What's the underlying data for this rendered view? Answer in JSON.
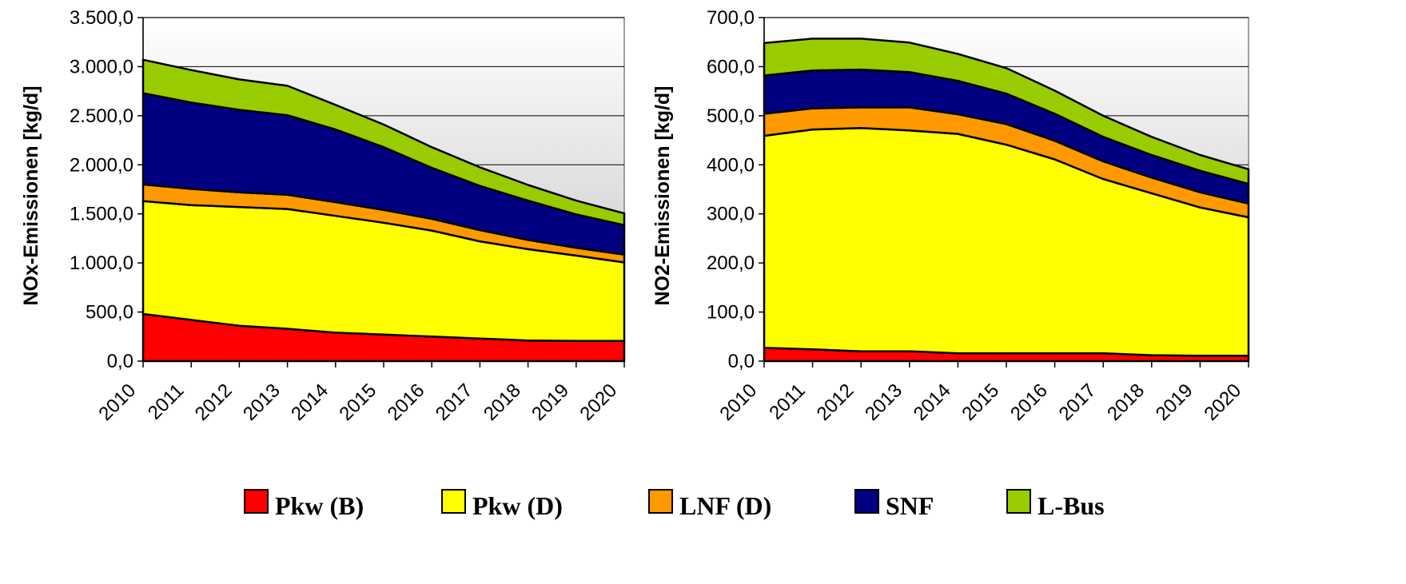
{
  "legend": [
    {
      "label": "Pkw (B)",
      "color": "#ff0000"
    },
    {
      "label": "Pkw (D)",
      "color": "#ffff00"
    },
    {
      "label": "LNF (D)",
      "color": "#ff9900"
    },
    {
      "label": "SNF",
      "color": "#000080"
    },
    {
      "label": "L-Bus",
      "color": "#99cc00"
    }
  ],
  "chart_data": [
    {
      "type": "area",
      "stacked": true,
      "ylabel": "NOx-Emissionen [kg/d]",
      "xlabel": "",
      "ylim": [
        0,
        3500
      ],
      "yticks": [
        "0,0",
        "500,0",
        "1.000,0",
        "1.500,0",
        "2.000,0",
        "2.500,0",
        "3.000,0",
        "3.500,0"
      ],
      "yticks_values": [
        0,
        500,
        1000,
        1500,
        2000,
        2500,
        3000,
        3500
      ],
      "categories": [
        "2010",
        "2011",
        "2012",
        "2013",
        "2014",
        "2015",
        "2016",
        "2017",
        "2018",
        "2019",
        "2020"
      ],
      "grid": true,
      "series": [
        {
          "name": "Pkw (B)",
          "color": "#ff0000",
          "values": [
            480,
            420,
            360,
            330,
            290,
            270,
            250,
            230,
            210,
            205,
            205
          ]
        },
        {
          "name": "Pkw (D)",
          "color": "#ffff00",
          "values": [
            1150,
            1170,
            1210,
            1220,
            1190,
            1140,
            1080,
            990,
            930,
            870,
            800
          ]
        },
        {
          "name": "LNF (D)",
          "color": "#ff9900",
          "values": [
            170,
            165,
            150,
            145,
            140,
            130,
            120,
            115,
            95,
            80,
            80
          ]
        },
        {
          "name": "SNF",
          "color": "#000080",
          "values": [
            930,
            880,
            840,
            810,
            740,
            640,
            520,
            450,
            400,
            340,
            300
          ]
        },
        {
          "name": "L-Bus",
          "color": "#99cc00",
          "values": [
            340,
            330,
            310,
            300,
            250,
            230,
            210,
            190,
            160,
            140,
            120
          ]
        }
      ]
    },
    {
      "type": "area",
      "stacked": true,
      "ylabel": "NO2-Emissionen [kg/d]",
      "xlabel": "",
      "ylim": [
        0,
        700
      ],
      "yticks": [
        "0,0",
        "100,0",
        "200,0",
        "300,0",
        "400,0",
        "500,0",
        "600,0",
        "700,0"
      ],
      "yticks_values": [
        0,
        100,
        200,
        300,
        400,
        500,
        600,
        700
      ],
      "categories": [
        "2010",
        "2011",
        "2012",
        "2013",
        "2014",
        "2015",
        "2016",
        "2017",
        "2018",
        "2019",
        "2020"
      ],
      "grid": true,
      "series": [
        {
          "name": "Pkw (B)",
          "color": "#ff0000",
          "values": [
            27,
            24,
            20,
            20,
            16,
            16,
            16,
            16,
            12,
            11,
            11
          ]
        },
        {
          "name": "Pkw (D)",
          "color": "#ffff00",
          "values": [
            432,
            448,
            455,
            450,
            447,
            425,
            395,
            355,
            330,
            302,
            282
          ]
        },
        {
          "name": "LNF (D)",
          "color": "#ff9900",
          "values": [
            45,
            43,
            42,
            47,
            40,
            42,
            38,
            36,
            32,
            31,
            28
          ]
        },
        {
          "name": "SNF",
          "color": "#000080",
          "values": [
            78,
            77,
            77,
            72,
            68,
            62,
            55,
            50,
            46,
            44,
            40
          ]
        },
        {
          "name": "L-Bus",
          "color": "#99cc00",
          "values": [
            66,
            65,
            63,
            60,
            55,
            52,
            47,
            43,
            37,
            32,
            30
          ]
        }
      ]
    }
  ]
}
